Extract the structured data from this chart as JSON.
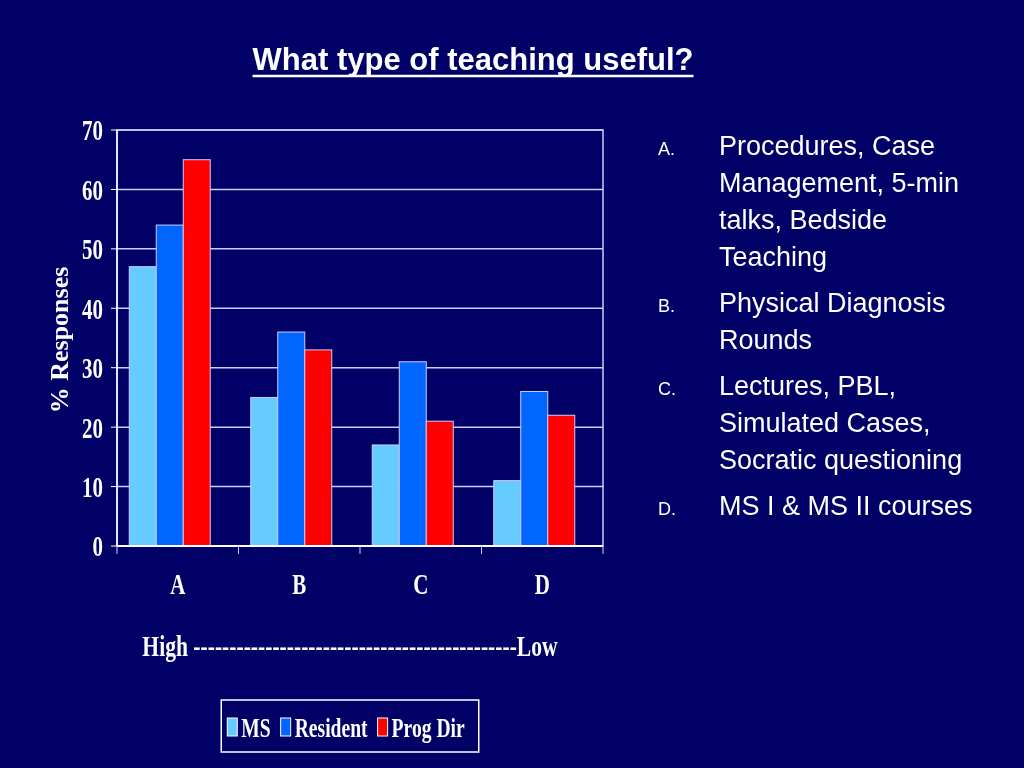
{
  "chart_data": {
    "type": "bar",
    "title": "What type of teaching useful?",
    "categories": [
      "A",
      "B",
      "C",
      "D"
    ],
    "series": [
      {
        "name": "MS",
        "color": "#66ccff",
        "values": [
          47,
          25,
          17,
          11
        ]
      },
      {
        "name": "Resident",
        "color": "#0066ff",
        "values": [
          54,
          36,
          31,
          26
        ]
      },
      {
        "name": "Prog Dir",
        "color": "#ff0000",
        "values": [
          65,
          33,
          21,
          22
        ]
      }
    ],
    "ylim": [
      0,
      70
    ],
    "yticks": [
      0,
      10,
      20,
      30,
      40,
      50,
      60,
      70
    ],
    "ylabel": "% Responses",
    "xlabel": "High ---------------------------------------------Low",
    "grid": "y",
    "legend": "bottom",
    "annotations": [
      "A. Procedures, Case Management, 5-min talks, Bedside Teaching",
      "B. Physical Diagnosis Rounds",
      "C. Lectures, PBL, Simulated Cases, Socratic questioning",
      "D. MS I & MS II courses"
    ]
  }
}
